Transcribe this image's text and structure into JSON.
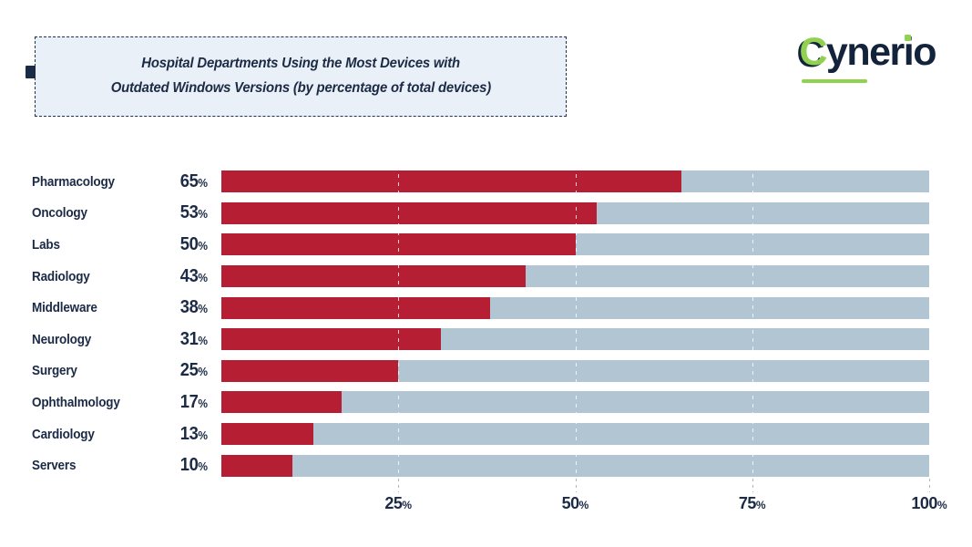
{
  "header": {
    "title_line1": "Hospital Departments Using the Most Devices with",
    "title_line2": "Outdated Windows Versions (by percentage of total devices)",
    "logo": {
      "part_c": "C",
      "part_yner": "yner",
      "part_i": "i",
      "part_o": "o"
    }
  },
  "colors": {
    "bar": "#b51e33",
    "track": "#b2c5d3",
    "navy_text": "#1b2a45",
    "logo_green": "#90d150",
    "title_box_bg": "#eaf0f7"
  },
  "chart_data": {
    "type": "bar",
    "orientation": "horizontal",
    "title": "Hospital Departments Using the Most Devices with Outdated Windows Versions (by percentage of total devices)",
    "categories": [
      "Pharmacology",
      "Oncology",
      "Labs",
      "Radiology",
      "Middleware",
      "Neurology",
      "Surgery",
      "Ophthalmology",
      "Cardiology",
      "Servers"
    ],
    "values": [
      65,
      53,
      50,
      43,
      38,
      31,
      25,
      17,
      13,
      10
    ],
    "value_suffix": "%",
    "axis_ticks": [
      25,
      50,
      75,
      100
    ],
    "xlim": [
      0,
      100
    ],
    "xlabel": "",
    "ylabel": "",
    "grid": "dashed vertical gridlines at 25/50/75/100",
    "legend": "none"
  }
}
